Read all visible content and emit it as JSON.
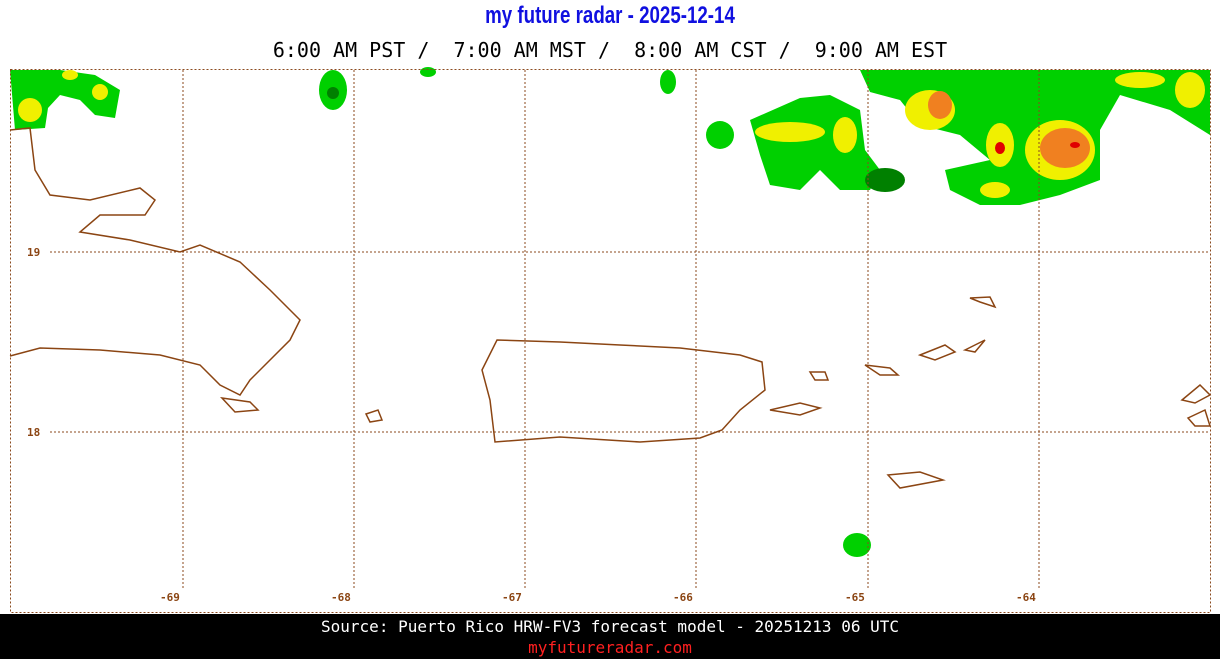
{
  "header": {
    "title": "my future radar - 2025-12-14",
    "times": "6:00 AM PST /  7:00 AM MST /  8:00 AM CST /  9:00 AM EST"
  },
  "map": {
    "lat_labels": [
      "19",
      "18"
    ],
    "lon_labels": [
      "-69",
      "-68",
      "-67",
      "-66",
      "-65",
      "-64"
    ]
  },
  "footer": {
    "source": "Source: Puerto Rico HRW-FV3 forecast model - 20251213 06 UTC",
    "site": "myfutureradar.com"
  }
}
